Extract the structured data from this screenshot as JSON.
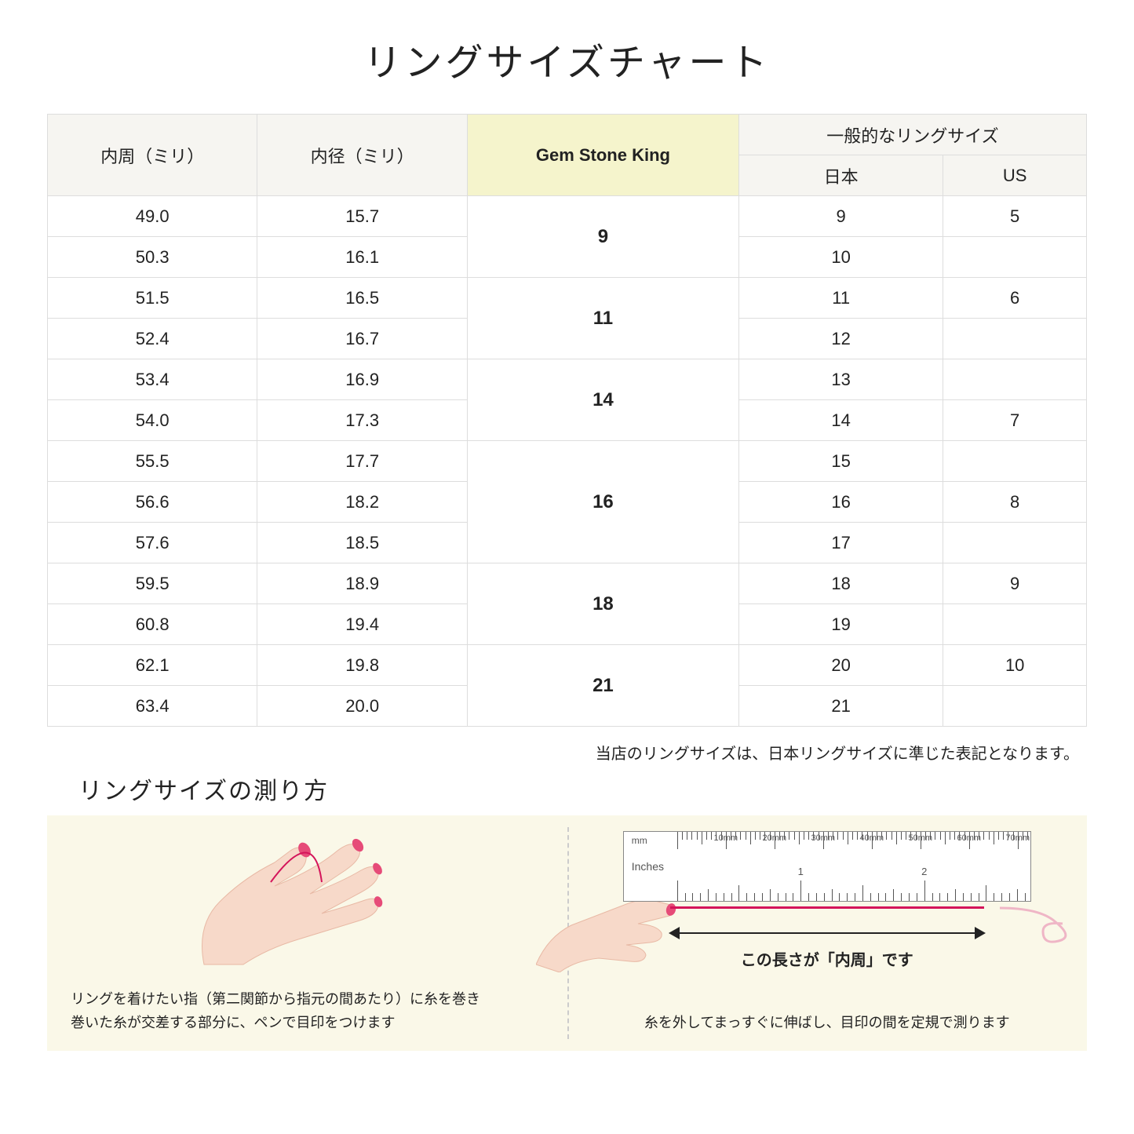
{
  "title": "リングサイズチャート",
  "columns": {
    "circumference": "内周（ミリ）",
    "diameter": "内径（ミリ）",
    "gsk": "Gem Stone King",
    "general_group": "一般的なリングサイズ",
    "jp": "日本",
    "us": "US"
  },
  "rows": [
    {
      "circ": "49.0",
      "dia": "15.7",
      "gsk": "9",
      "gsk_span": 2,
      "jp": "9",
      "us": "5"
    },
    {
      "circ": "50.3",
      "dia": "16.1",
      "jp": "10",
      "us": ""
    },
    {
      "circ": "51.5",
      "dia": "16.5",
      "gsk": "11",
      "gsk_span": 2,
      "jp": "11",
      "us": "6"
    },
    {
      "circ": "52.4",
      "dia": "16.7",
      "jp": "12",
      "us": ""
    },
    {
      "circ": "53.4",
      "dia": "16.9",
      "gsk": "14",
      "gsk_span": 2,
      "jp": "13",
      "us": ""
    },
    {
      "circ": "54.0",
      "dia": "17.3",
      "jp": "14",
      "us": "7"
    },
    {
      "circ": "55.5",
      "dia": "17.7",
      "gsk": "16",
      "gsk_span": 3,
      "jp": "15",
      "us": ""
    },
    {
      "circ": "56.6",
      "dia": "18.2",
      "jp": "16",
      "us": "8"
    },
    {
      "circ": "57.6",
      "dia": "18.5",
      "jp": "17",
      "us": ""
    },
    {
      "circ": "59.5",
      "dia": "18.9",
      "gsk": "18",
      "gsk_span": 2,
      "jp": "18",
      "us": "9"
    },
    {
      "circ": "60.8",
      "dia": "19.4",
      "jp": "19",
      "us": ""
    },
    {
      "circ": "62.1",
      "dia": "19.8",
      "gsk": "21",
      "gsk_span": 2,
      "jp": "20",
      "us": "10"
    },
    {
      "circ": "63.4",
      "dia": "20.0",
      "jp": "21",
      "us": ""
    }
  ],
  "note": "当店のリングサイズは、日本リングサイズに準じた表記となります。",
  "howto": {
    "title": "リングサイズの測り方",
    "left_text": "リングを着けたい指（第二関節から指元の間あたり）に糸を巻き\n巻いた糸が交差する部分に、ペンで目印をつけます",
    "right_text": "糸を外してまっすぐに伸ばし、目印の間を定規で測ります",
    "measure_label": "この長さが「内周」です",
    "ruler_mm_label": "mm",
    "ruler_inch_label": "Inches",
    "ruler_mm_marks": [
      "10mm",
      "20mm",
      "30mm",
      "40mm",
      "50mm",
      "60mm",
      "70mm"
    ],
    "ruler_inch_marks": [
      "1",
      "2"
    ]
  },
  "colors": {
    "header_bg": "#f6f5f1",
    "gsk_bg": "#f5f4cc",
    "panel_bg": "#faf8e8",
    "border": "#dddddd",
    "skin": "#f7d9c9",
    "skin_dark": "#e8b9a5",
    "nail": "#e64b78",
    "thread": "#d4145a"
  }
}
